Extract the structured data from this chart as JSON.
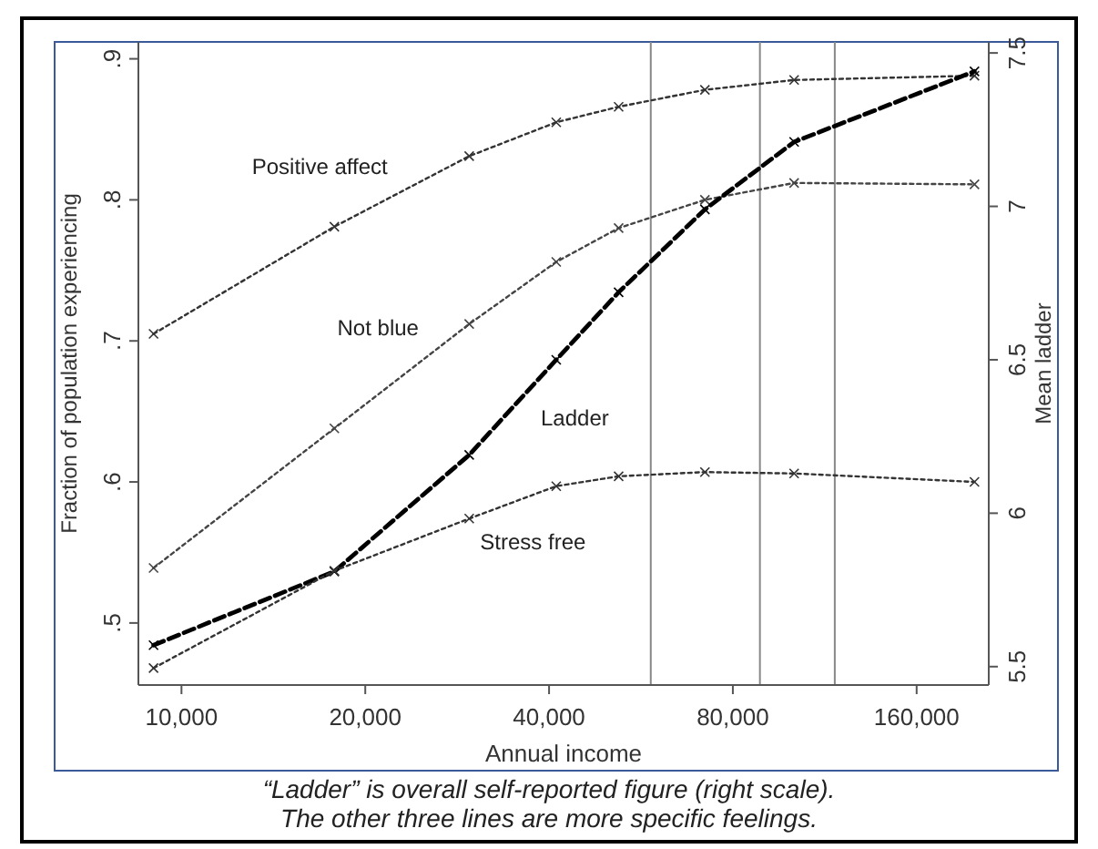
{
  "chart_data": {
    "type": "line",
    "xlabel": "Annual income",
    "ylabel": "Fraction of population experiencing",
    "y2label": "Mean ladder",
    "annotations": [
      "“Ladder” is overall self-reported figure (right scale).",
      "The other three lines are more specific feelings."
    ],
    "x": [
      9000,
      17800,
      29600,
      41100,
      52000,
      72000,
      100800,
      199000
    ],
    "log": "x",
    "grid": false,
    "marker": "cross",
    "xlim": [
      8500,
      210000
    ],
    "xticks": [
      {
        "value": 10000,
        "label": "10,000"
      },
      {
        "value": 20000,
        "label": "20,000"
      },
      {
        "value": 40000,
        "label": "40,000"
      },
      {
        "value": 80000,
        "label": "80,000"
      },
      {
        "value": 160000,
        "label": "160,000"
      }
    ],
    "ylim": [
      0.456,
      0.912
    ],
    "yticks": [
      {
        "value": 0.5,
        "label": ".5"
      },
      {
        "value": 0.6,
        "label": ".6"
      },
      {
        "value": 0.7,
        "label": ".7"
      },
      {
        "value": 0.8,
        "label": ".8"
      },
      {
        "value": 0.9,
        "label": ".9"
      }
    ],
    "y2lim": [
      5.44,
      7.536
    ],
    "y2ticks": [
      5.5,
      6,
      6.5,
      7,
      7.5
    ],
    "ref_lines": [
      {
        "axis": "x",
        "value": 58700,
        "color": "#888888"
      },
      {
        "axis": "x",
        "value": 88600,
        "color": "#888888"
      },
      {
        "axis": "x",
        "value": 117500,
        "color": "#888888"
      }
    ],
    "series": [
      {
        "name": "Positive affect",
        "color": "#333333",
        "line_style": "dotted",
        "values": [
          0.705,
          0.781,
          0.831,
          0.855,
          0.866,
          0.878,
          0.885,
          0.888
        ]
      },
      {
        "name": "Not blue",
        "color": "#444444",
        "line_style": "dotted",
        "values": [
          0.539,
          0.638,
          0.712,
          0.756,
          0.78,
          0.8,
          0.812,
          0.811
        ]
      },
      {
        "name": "Ladder",
        "color": "#000000",
        "line_style": "dashed",
        "axis": "y2",
        "values": [
          5.57,
          5.81,
          6.19,
          6.5,
          6.72,
          6.99,
          7.21,
          7.44
        ]
      },
      {
        "name": "Stress free",
        "color": "#333333",
        "line_style": "dotted",
        "values": [
          0.468,
          0.537,
          0.574,
          0.597,
          0.604,
          0.607,
          0.606,
          0.6
        ]
      }
    ]
  }
}
